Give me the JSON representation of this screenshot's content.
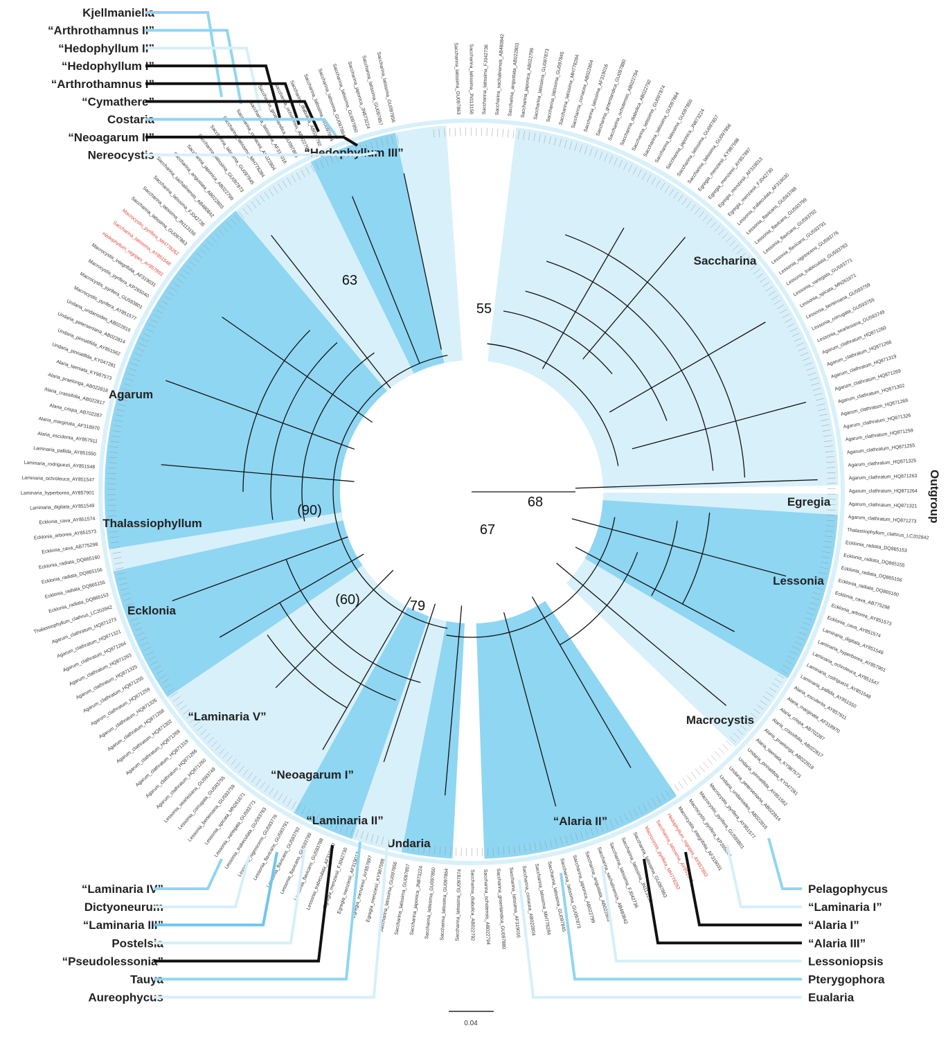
{
  "colors": {
    "dark_band": "#8fd6f2",
    "light_band": "#d8f0fa",
    "black": "#111111",
    "highlight_tip": "#e0443a"
  },
  "left_legend": [
    {
      "label": "Kjellmaniella",
      "color": "light"
    },
    {
      "label": "“Arthrothamnus II”",
      "color": "light"
    },
    {
      "label": "“Hedophyllum II”",
      "color": "pale"
    },
    {
      "label": "“Hedophyllum I”",
      "color": "black"
    },
    {
      "label": "“Arthrothamnus I”",
      "color": "black"
    },
    {
      "label": "“Cymathere”",
      "color": "black"
    },
    {
      "label": "Costaria",
      "color": "light"
    },
    {
      "label": "“Neoagarum II”",
      "color": "black"
    },
    {
      "label": "Nereocystis",
      "color": "pale"
    }
  ],
  "bottom_left_legend": [
    {
      "label": "“Laminaria IV”",
      "color": "light"
    },
    {
      "label": "Dictyoneurum",
      "color": "pale"
    },
    {
      "label": "“Laminaria III”",
      "color": "mid"
    },
    {
      "label": "Postelsia",
      "color": "pale"
    },
    {
      "label": "“Pseudolessonia”",
      "color": "black"
    },
    {
      "label": "Tauya",
      "color": "light"
    },
    {
      "label": "Aureophycus",
      "color": "pale"
    }
  ],
  "bottom_right_legend": [
    {
      "label": "Pelagophycus",
      "color": "light"
    },
    {
      "label": "“Laminaria I”",
      "color": "pale"
    },
    {
      "label": "“Alaria I”",
      "color": "black"
    },
    {
      "label": "“Alaria III”",
      "color": "black"
    },
    {
      "label": "Lessoniopsis",
      "color": "pale"
    },
    {
      "label": "Pterygophora",
      "color": "light"
    },
    {
      "label": "Eualaria",
      "color": "pale"
    }
  ],
  "clades": [
    {
      "label": "“Hedophyllum III”",
      "start": -83,
      "end": -73,
      "shade": "light"
    },
    {
      "label": "Saccharina",
      "start": -73,
      "end": -1,
      "shade": "light"
    },
    {
      "label": "Egregia",
      "start": 0.3,
      "end": 3.6,
      "shade": "light"
    },
    {
      "label": "Lessonia",
      "start": 3.6,
      "end": 30.5,
      "shade": "dark"
    },
    {
      "label": "Macrocystis",
      "start": 30.5,
      "end": 44,
      "shade": "light"
    },
    {
      "label": "“Alaria II”",
      "start": 56,
      "end": 88,
      "shade": "dark"
    },
    {
      "label": "Undaria",
      "start": 93,
      "end": 101,
      "shade": "dark"
    },
    {
      "label": "“Laminaria II”",
      "start": 101,
      "end": 109,
      "shade": "light"
    },
    {
      "label": "“Neoagarum I”",
      "start": 109,
      "end": 119,
      "shade": "dark"
    },
    {
      "label": "“Laminaria V”",
      "start": 119,
      "end": 146,
      "shade": "light"
    },
    {
      "label": "Ecklonia",
      "start": 146,
      "end": 167.5,
      "shade": "dark"
    },
    {
      "label": "Thalassiophyllum",
      "start": 167.5,
      "end": 171,
      "shade": "light"
    },
    {
      "label": "Agarum",
      "start": 171,
      "end": 230,
      "shade": "dark"
    },
    {
      "label": "",
      "start": 230,
      "end": 244,
      "shade": "light"
    },
    {
      "label": "",
      "start": 244,
      "end": 258,
      "shade": "dark"
    },
    {
      "label": "",
      "start": 258,
      "end": 266,
      "shade": "light"
    }
  ],
  "outgroup_label": "Outgroup",
  "support_values": [
    "63",
    "55",
    "68",
    "67",
    "(90)",
    "(60)",
    "79"
  ],
  "tip_samples": {
    "saccharina": [
      "Saccharina_latissima_GU097863",
      "Saccharina_latissima_JN113156",
      "Saccharina_latissima_FJ042736",
      "Saccharina_sachalinensis_AB480842",
      "Saccharina_angustata_AB022803",
      "Saccharina_japonica_AB022799",
      "Saccharina_latissima_GU097873",
      "Saccharina_latissima_GU097845",
      "Saccharina_latissima_MH778284",
      "Saccharina_coriacea_AB022804",
      "Saccharina_latissima_AF319016",
      "Saccharina_groenlandica_GU097880",
      "Saccharina_ochotensis_AB022794",
      "Saccharina_diabolica_AB022792",
      "Saccharina_latissima_GU097874",
      "Saccharina_latissima_GU097864",
      "Saccharina_latissima_GU097850",
      "Saccharina_japonica_JN873224",
      "Saccharina_latissima_GU097857",
      "Saccharina_latissima_GU097856"
    ],
    "egregia": [
      "Egregia_menziesii_KY987598",
      "Egregia_menziesii_AY857897",
      "Egregia_menziesii_AF319013",
      "Egregia_menziesii_FJ042730"
    ],
    "lessonia": [
      "Lessonia_trabeculata_AF319030",
      "Lessonia_flavicans_GU593788",
      "Lessonia_flavicans_GU593799",
      "Lessonia_flavicans_GU593792",
      "Lessonia_flavicans_GU593791",
      "Lessonia_nigrescens_GU593776",
      "Lessonia_trabeculata_GU593783",
      "Lessonia_variegata_GU593771",
      "Lessonia_spicata_MN261671",
      "Lessonia_berteroana_GU593759",
      "Lessonia_corrugata_GU593755",
      "Lessonia_searlesiana_GU593749"
    ],
    "agarum": [
      "Agarum_clathratum_HQ871260",
      "Agarum_clathratum_HQ871266",
      "Agarum_clathratum_HQ871319",
      "Agarum_clathratum_HQ871269",
      "Agarum_clathratum_HQ871302",
      "Agarum_clathratum_HQ871268",
      "Agarum_clathratum_HQ871326",
      "Agarum_clathratum_HQ871259",
      "Agarum_clathratum_HQ871255",
      "Agarum_clathratum_HQ871325",
      "Agarum_clathratum_HQ871263",
      "Agarum_clathratum_HQ871264",
      "Agarum_clathratum_HQ871321",
      "Agarum_clathratum_HQ871273"
    ],
    "ecklonia": [
      "Thalassiophyllum_clathrus_LC202842",
      "Ecklonia_radiata_DQ865153",
      "Ecklonia_radiata_DQ865155",
      "Ecklonia_radiata_DQ865156",
      "Ecklonia_radiata_DQ865160",
      "Ecklonia_cava_AB775298",
      "Ecklonia_arborea_AY851573",
      "Ecklonia_cava_AY851574"
    ],
    "laminaria": [
      "Laminaria_digitata_AY851549",
      "Laminaria_hyperborea_AY857901",
      "Laminaria_ochroleuca_AY851547",
      "Laminaria_rodriguezii_AY851548",
      "Laminaria_pallida_AY851550"
    ],
    "alaria": [
      "Alaria_esculenta_AY857911",
      "Alaria_marginata_AF318970",
      "Alaria_crispa_AB702287",
      "Alaria_crassifolia_AB022817",
      "Alaria_praelonga_AB022818",
      "Alaria_taeniata_KY987573"
    ],
    "undaria": [
      "Undaria_pinnatifida_KY047281",
      "Undaria_pinnatifida_AY851562",
      "Undaria_peterseniana_AB022814",
      "Undaria_undarioides_AB022816"
    ],
    "macrocystis": [
      "Macrocystis_pyrifera_AY851577",
      "Macrocystis_pyrifera_GU593801",
      "Macrocystis_pyrifera_KP265040",
      "Macrocystis_integrifolia_AF319031"
    ],
    "red_tips": [
      "Hedophyllum_nigripes_AY857893",
      "Saccharina_latissima_AY851548",
      "Macrocystis_pyrifera_MH778262"
    ]
  },
  "scale_bar": {
    "label": "0.04"
  }
}
